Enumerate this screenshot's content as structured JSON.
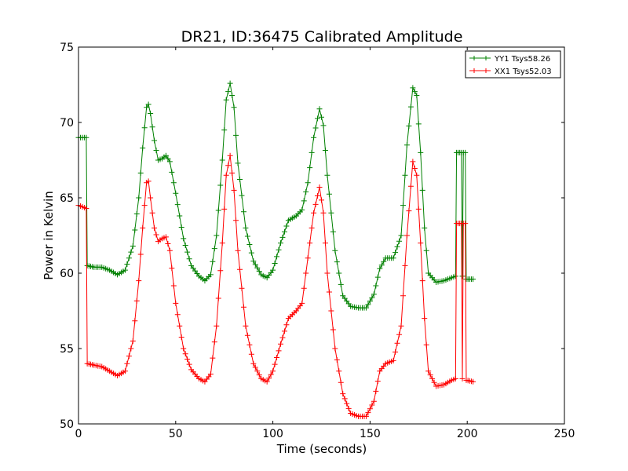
{
  "chart_data": {
    "type": "line",
    "title": "DR21, ID:36475 Calibrated Amplitude",
    "xlabel": "Time (seconds)",
    "ylabel": "Power in Kelvin",
    "xlim": [
      0,
      250
    ],
    "ylim": [
      50,
      75
    ],
    "xticks": [
      0,
      50,
      100,
      150,
      200,
      250
    ],
    "yticks": [
      50,
      55,
      60,
      65,
      70,
      75
    ],
    "grid": false,
    "legend_position": "top-right",
    "marker": "+",
    "series": [
      {
        "name": "YY1 Tsys58.26",
        "color": "#008000",
        "points": [
          [
            0,
            69.0
          ],
          [
            4,
            69.0
          ],
          [
            4.5,
            60.5
          ],
          [
            8,
            60.4
          ],
          [
            12,
            60.4
          ],
          [
            16,
            60.2
          ],
          [
            20,
            59.9
          ],
          [
            24,
            60.2
          ],
          [
            28,
            61.8
          ],
          [
            31,
            65.0
          ],
          [
            33,
            68.3
          ],
          [
            35,
            71.0
          ],
          [
            36,
            71.2
          ],
          [
            37,
            70.6
          ],
          [
            39,
            68.8
          ],
          [
            41,
            67.5
          ],
          [
            43,
            67.6
          ],
          [
            45,
            67.8
          ],
          [
            47,
            67.4
          ],
          [
            50,
            65.3
          ],
          [
            54,
            62.3
          ],
          [
            58,
            60.5
          ],
          [
            62,
            59.8
          ],
          [
            65,
            59.5
          ],
          [
            68,
            59.9
          ],
          [
            71,
            62.5
          ],
          [
            74,
            67.5
          ],
          [
            76,
            71.5
          ],
          [
            78,
            72.6
          ],
          [
            80,
            71.0
          ],
          [
            82,
            67.3
          ],
          [
            86,
            63.0
          ],
          [
            90,
            60.8
          ],
          [
            94,
            59.9
          ],
          [
            97,
            59.7
          ],
          [
            100,
            60.2
          ],
          [
            104,
            62.0
          ],
          [
            108,
            63.5
          ],
          [
            112,
            63.8
          ],
          [
            115,
            64.2
          ],
          [
            118,
            66.0
          ],
          [
            121,
            69.0
          ],
          [
            124,
            70.9
          ],
          [
            126,
            69.8
          ],
          [
            128,
            66.5
          ],
          [
            132,
            61.5
          ],
          [
            136,
            58.5
          ],
          [
            140,
            57.8
          ],
          [
            144,
            57.7
          ],
          [
            148,
            57.7
          ],
          [
            152,
            58.6
          ],
          [
            155,
            60.3
          ],
          [
            158,
            61.0
          ],
          [
            162,
            61.0
          ],
          [
            166,
            62.5
          ],
          [
            169,
            68.5
          ],
          [
            172,
            72.3
          ],
          [
            174,
            71.8
          ],
          [
            176,
            68.0
          ],
          [
            178,
            63.0
          ],
          [
            180,
            60.0
          ],
          [
            184,
            59.4
          ],
          [
            188,
            59.5
          ],
          [
            192,
            59.7
          ],
          [
            194,
            59.8
          ],
          [
            194.5,
            68.0
          ],
          [
            197,
            68.0
          ],
          [
            197.5,
            59.8
          ],
          [
            198,
            68.0
          ],
          [
            199,
            68.0
          ],
          [
            199.5,
            59.6
          ],
          [
            203,
            59.6
          ]
        ]
      },
      {
        "name": "XX1 Tsys52.03",
        "color": "#ff0000",
        "points": [
          [
            0,
            64.5
          ],
          [
            4,
            64.3
          ],
          [
            4.5,
            54.0
          ],
          [
            8,
            53.9
          ],
          [
            12,
            53.8
          ],
          [
            16,
            53.5
          ],
          [
            20,
            53.2
          ],
          [
            24,
            53.5
          ],
          [
            28,
            55.5
          ],
          [
            31,
            59.5
          ],
          [
            33,
            63.0
          ],
          [
            35,
            66.0
          ],
          [
            36,
            66.1
          ],
          [
            37,
            65.0
          ],
          [
            39,
            63.0
          ],
          [
            41,
            62.1
          ],
          [
            43,
            62.3
          ],
          [
            45,
            62.4
          ],
          [
            47,
            61.5
          ],
          [
            50,
            58.0
          ],
          [
            54,
            55.0
          ],
          [
            58,
            53.6
          ],
          [
            62,
            53.0
          ],
          [
            65,
            52.8
          ],
          [
            68,
            53.3
          ],
          [
            71,
            56.5
          ],
          [
            74,
            62.0
          ],
          [
            76,
            66.5
          ],
          [
            78,
            67.8
          ],
          [
            80,
            65.5
          ],
          [
            82,
            61.5
          ],
          [
            86,
            56.5
          ],
          [
            90,
            54.0
          ],
          [
            94,
            53.0
          ],
          [
            97,
            52.8
          ],
          [
            100,
            53.5
          ],
          [
            104,
            55.3
          ],
          [
            108,
            57.0
          ],
          [
            112,
            57.5
          ],
          [
            115,
            58.0
          ],
          [
            118,
            61.0
          ],
          [
            121,
            64.0
          ],
          [
            124,
            65.7
          ],
          [
            126,
            64.0
          ],
          [
            128,
            60.0
          ],
          [
            132,
            55.0
          ],
          [
            136,
            52.0
          ],
          [
            140,
            50.7
          ],
          [
            144,
            50.5
          ],
          [
            148,
            50.5
          ],
          [
            152,
            51.5
          ],
          [
            155,
            53.5
          ],
          [
            158,
            54.0
          ],
          [
            162,
            54.2
          ],
          [
            166,
            56.5
          ],
          [
            169,
            62.5
          ],
          [
            172,
            67.4
          ],
          [
            174,
            66.5
          ],
          [
            176,
            62.0
          ],
          [
            178,
            57.0
          ],
          [
            180,
            53.5
          ],
          [
            184,
            52.5
          ],
          [
            188,
            52.6
          ],
          [
            192,
            52.9
          ],
          [
            194,
            53.0
          ],
          [
            194.5,
            63.3
          ],
          [
            197,
            63.3
          ],
          [
            197.5,
            53.0
          ],
          [
            198,
            63.3
          ],
          [
            199,
            63.3
          ],
          [
            199.5,
            52.9
          ],
          [
            203,
            52.8
          ]
        ]
      }
    ]
  }
}
